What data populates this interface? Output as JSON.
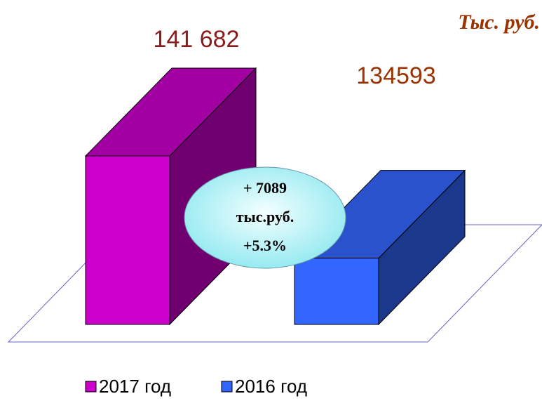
{
  "chart_data": {
    "type": "bar3d",
    "unit": "Тыс. руб.",
    "series": [
      {
        "name": "2017 год",
        "color": "#cc00cc",
        "values": [
          141682
        ],
        "value_labels": [
          "141 682"
        ]
      },
      {
        "name": "2016 год",
        "color": "#3366ff",
        "values": [
          134593
        ],
        "value_labels": [
          "134593"
        ]
      }
    ],
    "ylim": [
      130000,
      142000
    ],
    "annotation": [
      "+ 7089",
      "тыс.руб.",
      "+5.3%"
    ]
  }
}
